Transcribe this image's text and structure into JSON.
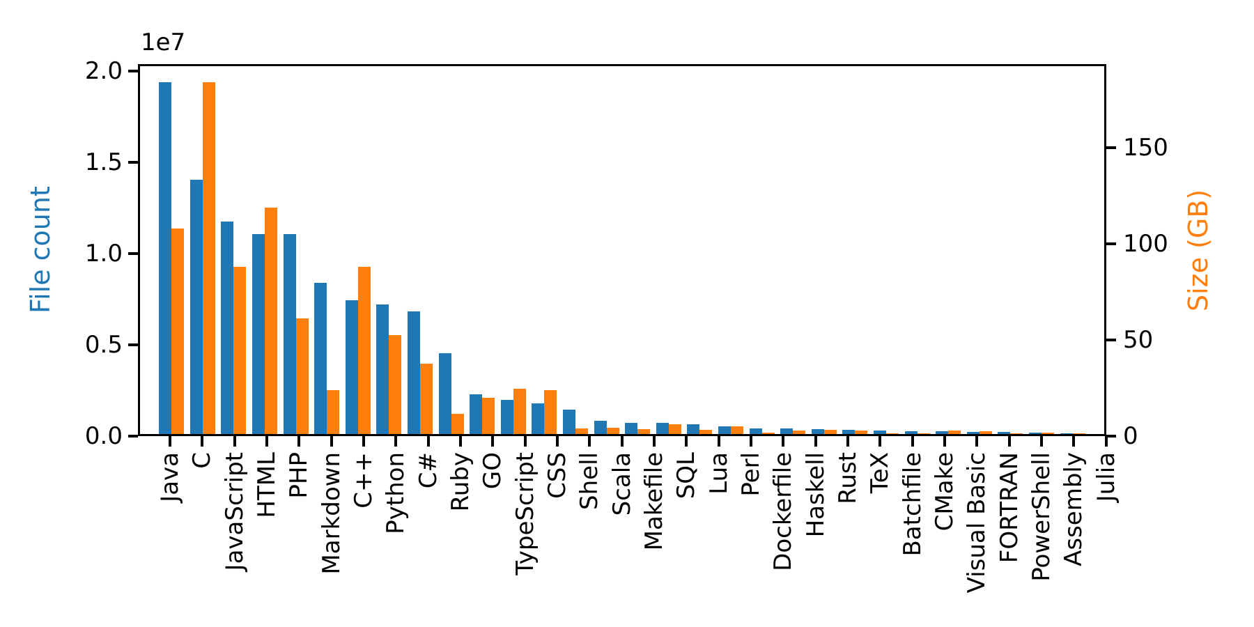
{
  "chart_data": {
    "type": "bar",
    "title": "",
    "grid": false,
    "legend": null,
    "categories": [
      "Java",
      "C",
      "JavaScript",
      "HTML",
      "PHP",
      "Markdown",
      "C++",
      "Python",
      "C#",
      "Ruby",
      "GO",
      "TypeScript",
      "CSS",
      "Shell",
      "Scala",
      "Makefile",
      "SQL",
      "Lua",
      "Perl",
      "Dockerfile",
      "Haskell",
      "Rust",
      "TeX",
      "Batchfile",
      "CMake",
      "Visual Basic",
      "FORTRAN",
      "PowerShell",
      "Assembly",
      "Julia"
    ],
    "series": [
      {
        "name": "File count",
        "axis": "left",
        "color": "#1f77b4",
        "values": [
          19500000,
          14100000,
          11800000,
          11100000,
          11100000,
          8400000,
          7400000,
          7200000,
          6800000,
          4500000,
          2200000,
          1900000,
          1700000,
          1350000,
          750000,
          620000,
          600000,
          550000,
          420000,
          320000,
          300000,
          280000,
          220000,
          210000,
          150000,
          170000,
          110000,
          130000,
          60000,
          40000
        ]
      },
      {
        "name": "Size (GB)",
        "axis": "right",
        "color": "#ff7f0e",
        "values": [
          108,
          185,
          88,
          119,
          61,
          23,
          88,
          52,
          37,
          10.5,
          19,
          24,
          23,
          3,
          3.3,
          2.5,
          5,
          2.2,
          4.2,
          0.7,
          1.7,
          2.2,
          1.9,
          0.3,
          0.3,
          1.8,
          1.4,
          0.5,
          0.6,
          0.25
        ]
      }
    ],
    "left_axis": {
      "label": "File count",
      "color": "#1f77b4",
      "offset_label": "1e7",
      "max": 20400000,
      "ticks": [
        {
          "value": 0,
          "label": "0.0"
        },
        {
          "value": 5000000,
          "label": "0.5"
        },
        {
          "value": 10000000,
          "label": "1.0"
        },
        {
          "value": 15000000,
          "label": "1.5"
        },
        {
          "value": 20000000,
          "label": "2.0"
        }
      ]
    },
    "right_axis": {
      "label": "Size (GB)",
      "color": "#ff7f0e",
      "max": 193.5,
      "ticks": [
        {
          "value": 0,
          "label": "0"
        },
        {
          "value": 50,
          "label": "50"
        },
        {
          "value": 100,
          "label": "100"
        },
        {
          "value": 150,
          "label": "150"
        }
      ]
    }
  }
}
